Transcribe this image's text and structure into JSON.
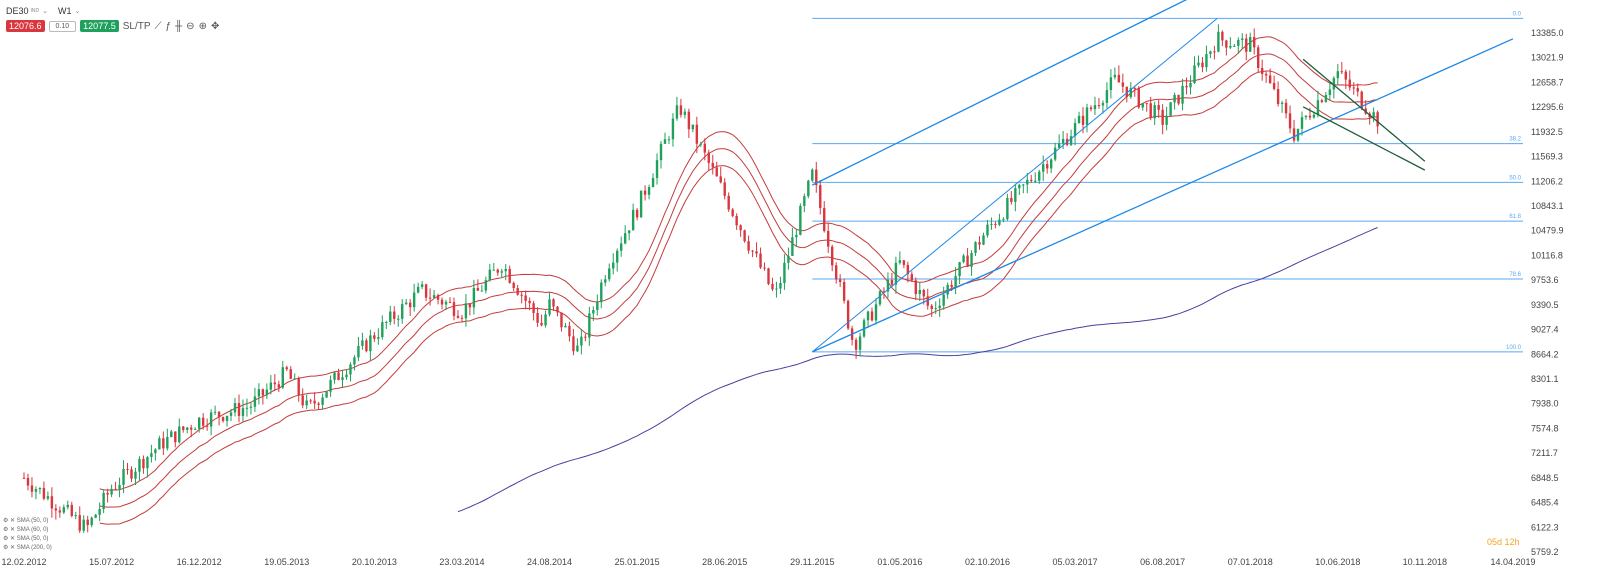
{
  "toolbar": {
    "symbol": "DE30",
    "symbol_sub": "IND",
    "timeframe": "W1",
    "sell_price": "12076.6",
    "lot": "0.10",
    "buy_price": "12077.5",
    "sltp_label": "SL/TP"
  },
  "indicators": [
    "SMA (50, 0)",
    "SMA (60, 0)",
    "SMA (50, 0)",
    "SMA (200, 0)"
  ],
  "countdown": "05d 12h",
  "colors": {
    "bull": "#1fa05c",
    "bear": "#d9363e",
    "trend": "#1e88e5",
    "fib": "#5aa9f0",
    "sma_red": "#c43c3c",
    "sma200": "#4b3fa0",
    "pennant": "#1e5e3a"
  },
  "chart_data": {
    "type": "candlestick",
    "symbol": "DE30",
    "timeframe": "W1",
    "y_ticks": [
      "13385.0",
      "13021.9",
      "12658.7",
      "12295.6",
      "11932.5",
      "11569.3",
      "11206.2",
      "10843.1",
      "10479.9",
      "10116.8",
      "9753.6",
      "9390.5",
      "9027.4",
      "8664.2",
      "8301.1",
      "7938.0",
      "7574.8",
      "7211.7",
      "6848.5",
      "6485.4",
      "6122.3",
      "5759.2"
    ],
    "x_ticks": [
      "12.02.2012",
      "15.07.2012",
      "16.12.2012",
      "19.05.2013",
      "20.10.2013",
      "23.03.2014",
      "24.08.2014",
      "25.01.2015",
      "28.06.2015",
      "29.11.2015",
      "01.05.2016",
      "02.10.2016",
      "05.03.2017",
      "06.08.2017",
      "07.01.2018",
      "10.06.2018",
      "10.11.2018",
      "14.04.2019"
    ],
    "ylim": [
      5759.2,
      13385.0
    ],
    "fibonacci": [
      {
        "label": "0.0",
        "value": 13600
      },
      {
        "label": "38.2",
        "value": 11760
      },
      {
        "label": "50.0",
        "value": 11190
      },
      {
        "label": "61.8",
        "value": 10620
      },
      {
        "label": "78.6",
        "value": 9770
      },
      {
        "label": "100.0",
        "value": 8700
      }
    ],
    "trend": [
      {
        "date": "12.02.2012",
        "close": 6850
      },
      {
        "date": "01.06.2012",
        "close": 6100
      },
      {
        "date": "15.07.2012",
        "close": 6700
      },
      {
        "date": "10.10.2012",
        "close": 7350
      },
      {
        "date": "16.12.2012",
        "close": 7700
      },
      {
        "date": "15.03.2013",
        "close": 7900
      },
      {
        "date": "19.05.2013",
        "close": 8400
      },
      {
        "date": "25.06.2013",
        "close": 7850
      },
      {
        "date": "20.10.2013",
        "close": 8950
      },
      {
        "date": "10.01.2014",
        "close": 9600
      },
      {
        "date": "23.03.2014",
        "close": 9300
      },
      {
        "date": "01.06.2014",
        "close": 10000
      },
      {
        "date": "10.08.2014",
        "close": 9100
      },
      {
        "date": "24.08.2014",
        "close": 9400
      },
      {
        "date": "15.10.2014",
        "close": 8700
      },
      {
        "date": "05.12.2014",
        "close": 10000
      },
      {
        "date": "25.01.2015",
        "close": 10800
      },
      {
        "date": "10.04.2015",
        "close": 12300
      },
      {
        "date": "28.06.2015",
        "close": 11000
      },
      {
        "date": "25.09.2015",
        "close": 9500
      },
      {
        "date": "29.11.2015",
        "close": 11300
      },
      {
        "date": "10.02.2016",
        "close": 8800
      },
      {
        "date": "01.05.2016",
        "close": 10000
      },
      {
        "date": "25.06.2016",
        "close": 9300
      },
      {
        "date": "02.10.2016",
        "close": 10500
      },
      {
        "date": "05.03.2017",
        "close": 12000
      },
      {
        "date": "15.05.2017",
        "close": 12700
      },
      {
        "date": "06.08.2017",
        "close": 12100
      },
      {
        "date": "10.11.2017",
        "close": 13300
      },
      {
        "date": "07.01.2018",
        "close": 13200
      },
      {
        "date": "25.03.2018",
        "close": 11900
      },
      {
        "date": "10.06.2018",
        "close": 12800
      },
      {
        "date": "20.08.2018",
        "close": 12100
      }
    ]
  }
}
